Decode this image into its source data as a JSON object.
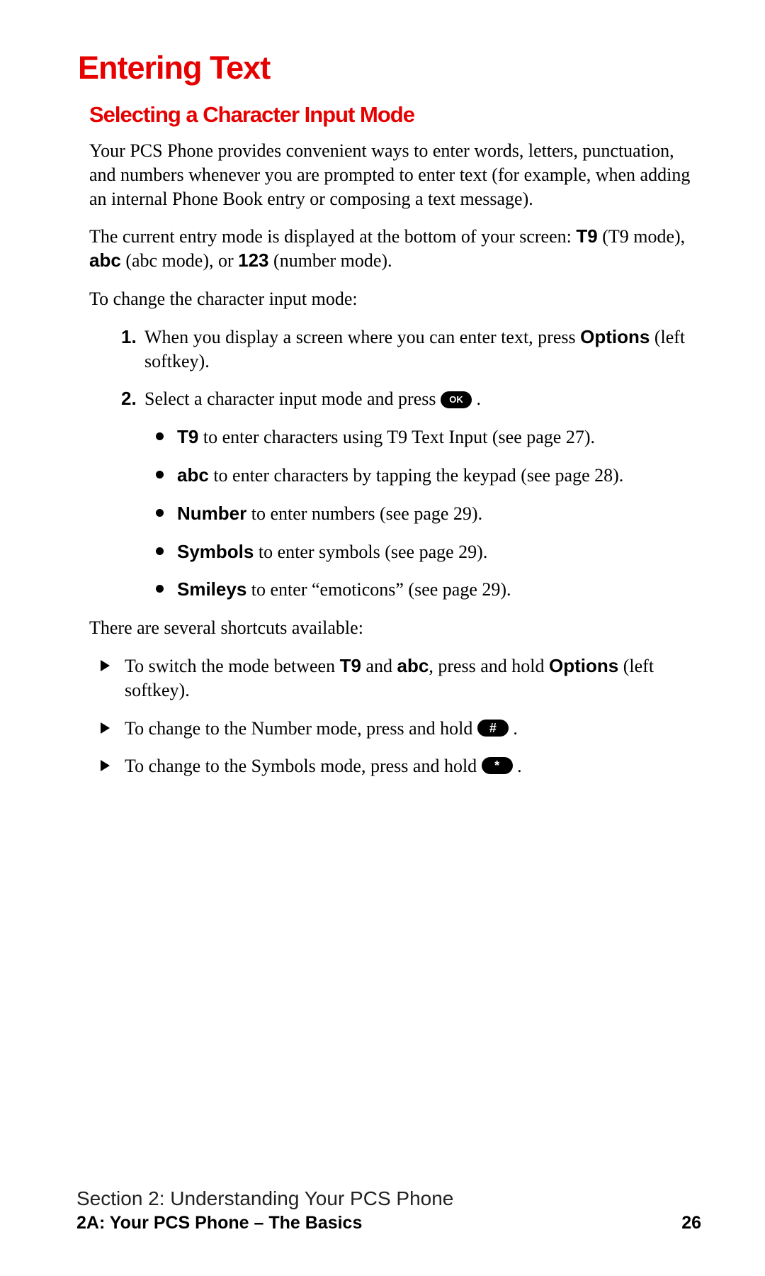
{
  "colors": {
    "heading_red": "#e60000",
    "body_text": "#000000",
    "background": "#ffffff"
  },
  "typography": {
    "heading_font": "Helvetica Neue",
    "body_font": "Palatino",
    "h1_size_pt": 34,
    "h2_size_pt": 23,
    "body_size_pt": 19
  },
  "h1": "Entering Text",
  "h2": "Selecting a Character Input Mode",
  "para1": {
    "t1": "Your PCS Phone provides convenient ways to enter words, letters, punctuation, and numbers whenever you are prompted to enter text (for example, when adding an internal Phone Book entry or composing a text message)."
  },
  "para2": {
    "t1": "The current entry mode is displayed at the bottom of your screen: ",
    "b1": "T9",
    "t2": " (T9 mode), ",
    "b2": "abc",
    "t3": " (abc mode), or ",
    "b3": "123",
    "t4": " (number mode)."
  },
  "para3": "To change the character input mode:",
  "ol": {
    "n1": "1.",
    "n2": "2.",
    "item1": {
      "t1": "When you display a screen where you can enter text, press ",
      "b1": "Options",
      "t2": " (left softkey)."
    },
    "item2": {
      "t1": "Select a character input mode and press ",
      "pill": "OK",
      "t2": " ."
    }
  },
  "sub": {
    "i1": {
      "b": "T9",
      "t": " to enter characters using T9 Text Input (see page 27)."
    },
    "i2": {
      "b": "abc",
      "t": " to enter characters by tapping the keypad (see page 28)."
    },
    "i3": {
      "b": "Number",
      "t": " to enter numbers (see page 29)."
    },
    "i4": {
      "b": "Symbols",
      "t": " to enter symbols (see page 29)."
    },
    "i5": {
      "b": "Smileys",
      "t": " to enter “emoticons” (see page 29)."
    }
  },
  "para4": "There are several shortcuts available:",
  "arrows": {
    "i1": {
      "t1": "To switch the mode between ",
      "b1": "T9",
      "t2": " and ",
      "b2": "abc",
      "t3": ", press and hold ",
      "b3": "Options",
      "t4": " (left softkey)."
    },
    "i2": {
      "t1": "To change to the Number mode, press and hold ",
      "pill": "#",
      "t2": " ."
    },
    "i3": {
      "t1": "To change to the Symbols mode, press and hold ",
      "pill": "*",
      "t2": " ."
    }
  },
  "footer": {
    "line1": "Section 2: Understanding Your PCS Phone",
    "line2_left": "2A: Your PCS Phone – The Basics",
    "page_number": "26"
  }
}
